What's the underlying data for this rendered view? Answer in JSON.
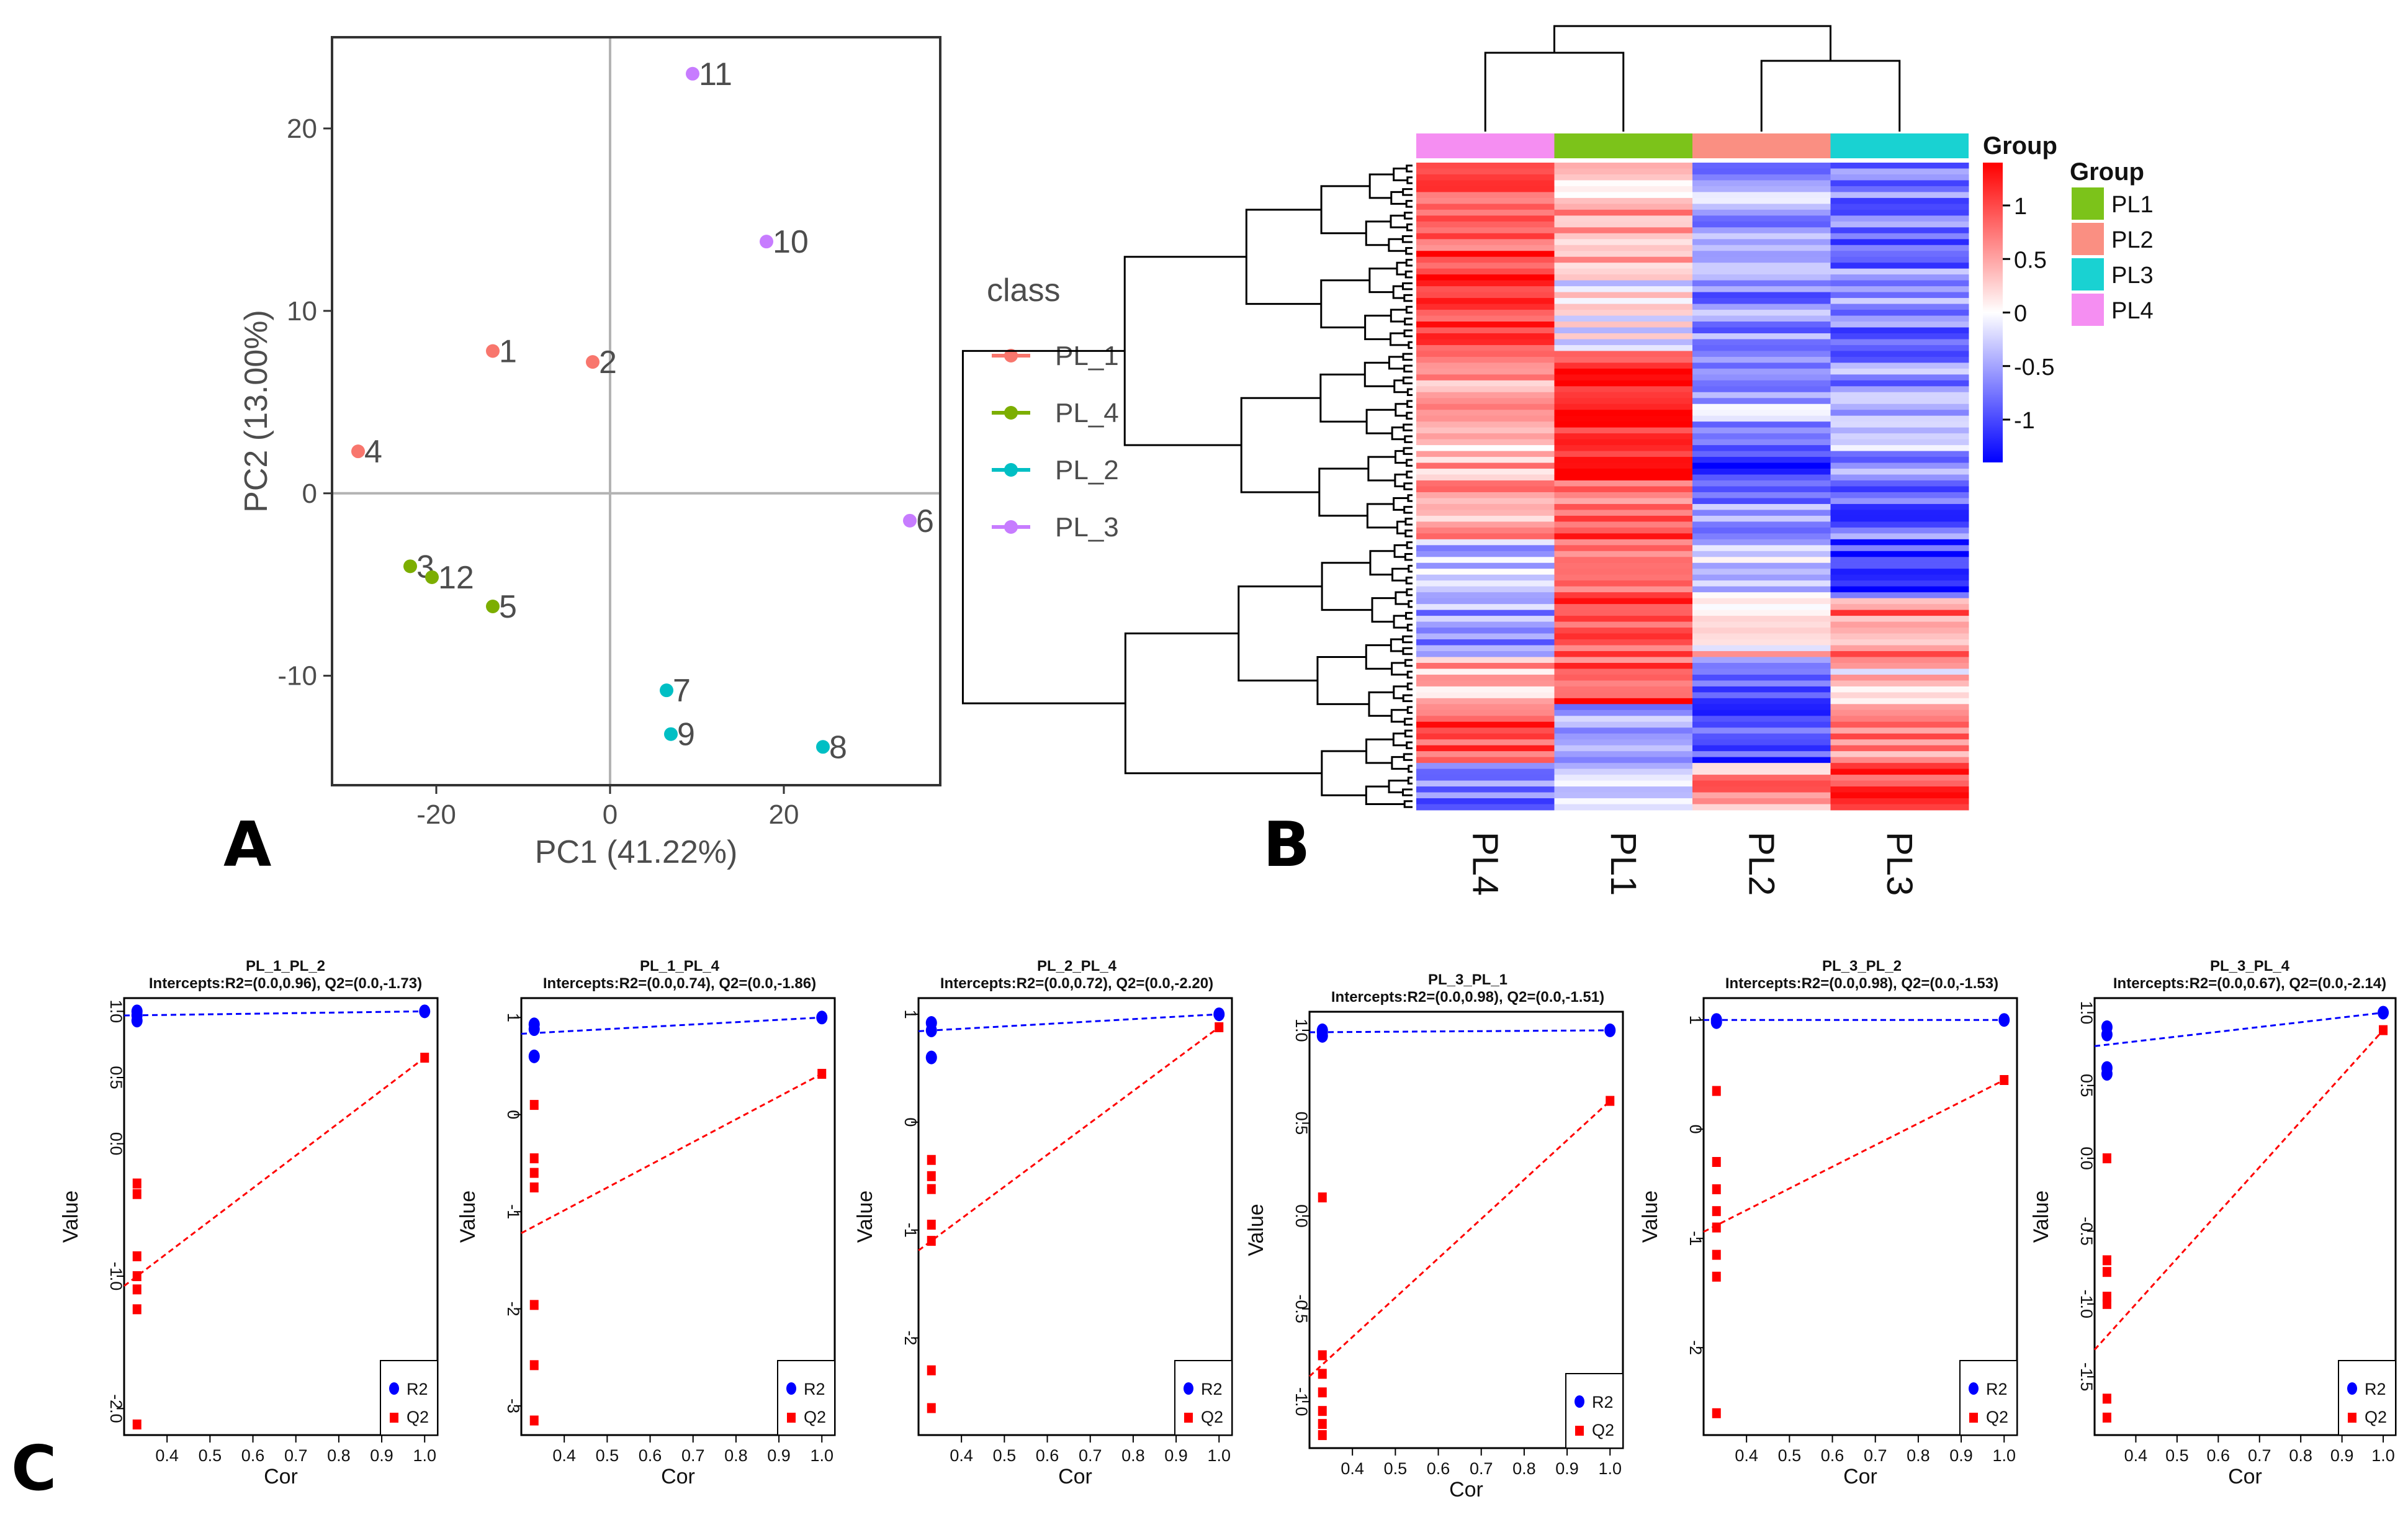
{
  "panels": {
    "a": "A",
    "b": "B",
    "c": "C"
  },
  "chart_data": [
    {
      "type": "scatter",
      "id": "pca",
      "xlabel": "PC1 (41.22%)",
      "ylabel": "PC2 (13.00%)",
      "xlim": [
        -32,
        38
      ],
      "ylim": [
        -16,
        25
      ],
      "xticks": [
        -20,
        0,
        20
      ],
      "yticks": [
        -10,
        0,
        10,
        20
      ],
      "legend_title": "class",
      "legend_position": "right",
      "classes": [
        {
          "name": "PL_1",
          "color": "#f8766d"
        },
        {
          "name": "PL_4",
          "color": "#7cae00"
        },
        {
          "name": "PL_2",
          "color": "#00bfc4"
        },
        {
          "name": "PL_3",
          "color": "#c77cff"
        }
      ],
      "points": [
        {
          "label": "1",
          "x": -13.5,
          "y": 7.8,
          "class": "PL_1"
        },
        {
          "label": "2",
          "x": -2.0,
          "y": 7.2,
          "class": "PL_1"
        },
        {
          "label": "4",
          "x": -29.0,
          "y": 2.3,
          "class": "PL_1"
        },
        {
          "label": "3",
          "x": -23.0,
          "y": -4.0,
          "class": "PL_4"
        },
        {
          "label": "12",
          "x": -20.5,
          "y": -4.6,
          "class": "PL_4"
        },
        {
          "label": "5",
          "x": -13.5,
          "y": -6.2,
          "class": "PL_4"
        },
        {
          "label": "7",
          "x": 6.5,
          "y": -10.8,
          "class": "PL_2"
        },
        {
          "label": "9",
          "x": 7.0,
          "y": -13.2,
          "class": "PL_2"
        },
        {
          "label": "8",
          "x": 24.5,
          "y": -13.9,
          "class": "PL_2"
        },
        {
          "label": "11",
          "x": 9.5,
          "y": 23.0,
          "class": "PL_3"
        },
        {
          "label": "10",
          "x": 18.0,
          "y": 13.8,
          "class": "PL_3"
        },
        {
          "label": "6",
          "x": 34.5,
          "y": -1.5,
          "class": "PL_3"
        }
      ]
    },
    {
      "type": "heatmap",
      "id": "heatmap",
      "columns": [
        "PL4",
        "PL1",
        "PL2",
        "PL3"
      ],
      "column_groups": [
        "PL4",
        "PL1",
        "PL2",
        "PL3"
      ],
      "colorbar_title": "Group",
      "colorbar_ticks": [
        "1",
        "0.5",
        "0",
        "-0.5",
        "-1"
      ],
      "colorbar_tick_values": [
        1,
        0.5,
        0,
        -0.5,
        -1
      ],
      "value_range": [
        -1.4,
        1.4
      ],
      "legend_title": "Group",
      "legend": [
        {
          "name": "PL1",
          "color": "#7cc31a"
        },
        {
          "name": "PL2",
          "color": "#fa8f82"
        },
        {
          "name": "PL3",
          "color": "#19d2d2"
        },
        {
          "name": "PL4",
          "color": "#f58ef2"
        }
      ],
      "row_blocks": [
        {
          "rows": 18,
          "values": [
            1.0,
            0.4,
            -0.5,
            -0.8
          ]
        },
        {
          "rows": 14,
          "values": [
            1.2,
            0.0,
            -0.6,
            -0.7
          ]
        },
        {
          "rows": 12,
          "values": [
            0.6,
            1.2,
            -0.4,
            -0.6
          ]
        },
        {
          "rows": 10,
          "values": [
            0.4,
            1.3,
            -1.0,
            -0.5
          ]
        },
        {
          "rows": 10,
          "values": [
            0.5,
            0.9,
            -0.6,
            -0.8
          ]
        },
        {
          "rows": 10,
          "values": [
            -0.4,
            0.7,
            -0.2,
            -1.1
          ]
        },
        {
          "rows": 10,
          "values": [
            -0.5,
            1.0,
            0.2,
            0.7
          ]
        },
        {
          "rows": 8,
          "values": [
            0.5,
            1.0,
            -0.8,
            0.2
          ]
        },
        {
          "rows": 10,
          "values": [
            1.0,
            -0.5,
            -0.9,
            0.7
          ]
        },
        {
          "rows": 8,
          "values": [
            -0.8,
            -0.3,
            0.6,
            1.1
          ]
        }
      ],
      "dendrogram": "hierarchical clustering tree"
    },
    {
      "type": "line",
      "id": "perm1",
      "title": "PL_1_PL_2",
      "subtitle": "Intercepts:R2=(0.0,0.96), Q2=(0.0,-1.73)",
      "xlabel": "Cor",
      "ylabel": "Value",
      "xlim": [
        0.3,
        1.03
      ],
      "ylim": [
        -2.2,
        1.1
      ],
      "xticks": [
        "0.4",
        "0.5",
        "0.6",
        "0.7",
        "0.8",
        "0.9",
        "1.0"
      ],
      "yticks": [
        "1.0",
        "0.5",
        "0.0",
        "-1.0",
        "-2.0"
      ],
      "ytick_values": [
        1.0,
        0.5,
        0.0,
        -1.0,
        -2.0
      ],
      "legend": [
        "R2",
        "Q2"
      ],
      "r2_line": [
        [
          0.33,
          0.97
        ],
        [
          1.0,
          1.0
        ]
      ],
      "q2_line": [
        [
          0.33,
          -1.0
        ],
        [
          1.0,
          0.65
        ]
      ],
      "r2_points": [
        [
          0.33,
          0.93
        ],
        [
          0.33,
          0.97
        ],
        [
          0.33,
          1.0
        ],
        [
          1.0,
          1.0
        ]
      ],
      "q2_points": [
        [
          0.33,
          -0.3
        ],
        [
          0.33,
          -0.38
        ],
        [
          0.33,
          -0.85
        ],
        [
          0.33,
          -1.0
        ],
        [
          0.33,
          -1.1
        ],
        [
          0.33,
          -1.25
        ],
        [
          0.33,
          -2.12
        ],
        [
          1.0,
          0.65
        ]
      ]
    },
    {
      "type": "line",
      "id": "perm2",
      "title": "PL_1_PL_4",
      "subtitle": "Intercepts:R2=(0.0,0.74), Q2=(0.0,-1.86)",
      "xlabel": "Cor",
      "ylabel": "Value",
      "xlim": [
        0.3,
        1.03
      ],
      "ylim": [
        -3.3,
        1.2
      ],
      "xticks": [
        "0.4",
        "0.5",
        "0.6",
        "0.7",
        "0.8",
        "0.9",
        "1.0"
      ],
      "yticks": [
        "1",
        "0",
        "-1",
        "-2",
        "-3"
      ],
      "ytick_values": [
        1,
        0,
        -1,
        -2,
        -3
      ],
      "legend": [
        "R2",
        "Q2"
      ],
      "r2_line": [
        [
          0.33,
          0.84
        ],
        [
          1.0,
          1.0
        ]
      ],
      "q2_line": [
        [
          0.33,
          -1.15
        ],
        [
          1.0,
          0.42
        ]
      ],
      "r2_points": [
        [
          0.33,
          0.6
        ],
        [
          0.33,
          0.88
        ],
        [
          0.33,
          0.93
        ],
        [
          1.0,
          1.0
        ]
      ],
      "q2_points": [
        [
          0.33,
          0.1
        ],
        [
          0.33,
          -0.45
        ],
        [
          0.33,
          -0.6
        ],
        [
          0.33,
          -0.75
        ],
        [
          0.33,
          -1.96
        ],
        [
          0.33,
          -2.58
        ],
        [
          0.33,
          -3.15
        ],
        [
          1.0,
          0.42
        ]
      ]
    },
    {
      "type": "line",
      "id": "perm3",
      "title": "PL_2_PL_4",
      "subtitle": "Intercepts:R2=(0.0,0.72), Q2=(0.0,-2.20)",
      "xlabel": "Cor",
      "ylabel": "Value",
      "xlim": [
        0.3,
        1.03
      ],
      "ylim": [
        -2.9,
        1.15
      ],
      "xticks": [
        "0.4",
        "0.5",
        "0.6",
        "0.7",
        "0.8",
        "0.9",
        "1.0"
      ],
      "yticks": [
        "1",
        "0",
        "-1",
        "-2"
      ],
      "ytick_values": [
        1,
        0,
        -1,
        -2
      ],
      "legend": [
        "R2",
        "Q2"
      ],
      "r2_line": [
        [
          0.33,
          0.85
        ],
        [
          1.0,
          1.0
        ]
      ],
      "q2_line": [
        [
          0.33,
          -1.1
        ],
        [
          1.0,
          0.88
        ]
      ],
      "r2_points": [
        [
          0.33,
          0.6
        ],
        [
          0.33,
          0.85
        ],
        [
          0.33,
          0.92
        ],
        [
          1.0,
          1.0
        ]
      ],
      "q2_points": [
        [
          0.33,
          -0.35
        ],
        [
          0.33,
          -0.5
        ],
        [
          0.33,
          -0.62
        ],
        [
          0.33,
          -0.95
        ],
        [
          0.33,
          -1.1
        ],
        [
          0.33,
          -2.3
        ],
        [
          0.33,
          -2.65
        ],
        [
          1.0,
          0.88
        ]
      ]
    },
    {
      "type": "line",
      "id": "perm4",
      "title": "PL_3_PL_1",
      "subtitle": "Intercepts:R2=(0.0,0.98), Q2=(0.0,-1.51)",
      "xlabel": "Cor",
      "ylabel": "Value",
      "xlim": [
        0.3,
        1.03
      ],
      "ylim": [
        -1.25,
        1.1
      ],
      "xticks": [
        "0.4",
        "0.5",
        "0.6",
        "0.7",
        "0.8",
        "0.9",
        "1.0"
      ],
      "yticks": [
        "1.0",
        "0.5",
        "0.0",
        "-0.5",
        "-1.0"
      ],
      "ytick_values": [
        1.0,
        0.5,
        0.0,
        -0.5,
        -1.0
      ],
      "legend": [
        "R2",
        "Q2"
      ],
      "r2_line": [
        [
          0.33,
          0.99
        ],
        [
          1.0,
          1.0
        ]
      ],
      "q2_line": [
        [
          0.33,
          -0.8
        ],
        [
          1.0,
          0.62
        ]
      ],
      "r2_points": [
        [
          0.33,
          0.97
        ],
        [
          0.33,
          0.99
        ],
        [
          0.33,
          1.0
        ],
        [
          1.0,
          1.0
        ]
      ],
      "q2_points": [
        [
          0.33,
          0.1
        ],
        [
          0.33,
          -0.75
        ],
        [
          0.33,
          -0.85
        ],
        [
          0.33,
          -0.95
        ],
        [
          0.33,
          -1.05
        ],
        [
          0.33,
          -1.12
        ],
        [
          0.33,
          -1.18
        ],
        [
          1.0,
          0.62
        ]
      ]
    },
    {
      "type": "line",
      "id": "perm5",
      "title": "PL_3_PL_2",
      "subtitle": "Intercepts:R2=(0.0,0.98), Q2=(0.0,-1.53)",
      "xlabel": "Cor",
      "ylabel": "Value",
      "xlim": [
        0.3,
        1.03
      ],
      "ylim": [
        -2.8,
        1.2
      ],
      "xticks": [
        "0.4",
        "0.5",
        "0.6",
        "0.7",
        "0.8",
        "0.9",
        "1.0"
      ],
      "yticks": [
        "1",
        "0",
        "-1",
        "-2"
      ],
      "ytick_values": [
        1,
        0,
        -1,
        -2
      ],
      "legend": [
        "R2",
        "Q2"
      ],
      "r2_line": [
        [
          0.33,
          1.0
        ],
        [
          1.0,
          1.0
        ]
      ],
      "q2_line": [
        [
          0.33,
          -0.88
        ],
        [
          1.0,
          0.45
        ]
      ],
      "r2_points": [
        [
          0.33,
          0.98
        ],
        [
          0.33,
          1.0
        ],
        [
          1.0,
          1.0
        ]
      ],
      "q2_points": [
        [
          0.33,
          0.35
        ],
        [
          0.33,
          -0.3
        ],
        [
          0.33,
          -0.55
        ],
        [
          0.33,
          -0.75
        ],
        [
          0.33,
          -0.9
        ],
        [
          0.33,
          -1.15
        ],
        [
          0.33,
          -1.35
        ],
        [
          0.33,
          -2.6
        ],
        [
          1.0,
          0.45
        ]
      ]
    },
    {
      "type": "line",
      "id": "perm6",
      "title": "PL_3_PL_4",
      "subtitle": "Intercepts:R2=(0.0,0.67), Q2=(0.0,-2.14)",
      "xlabel": "Cor",
      "ylabel": "Value",
      "xlim": [
        0.3,
        1.03
      ],
      "ylim": [
        -1.9,
        1.1
      ],
      "xticks": [
        "0.4",
        "0.5",
        "0.6",
        "0.7",
        "0.8",
        "0.9",
        "1.0"
      ],
      "yticks": [
        "1.0",
        "0.5",
        "0.0",
        "-0.5",
        "-1.0",
        "-1.5"
      ],
      "ytick_values": [
        1.0,
        0.5,
        0.0,
        -0.5,
        -1.0,
        -1.5
      ],
      "legend": [
        "R2",
        "Q2"
      ],
      "r2_line": [
        [
          0.33,
          0.78
        ],
        [
          1.0,
          1.0
        ]
      ],
      "q2_line": [
        [
          0.33,
          -1.22
        ],
        [
          1.0,
          0.88
        ]
      ],
      "r2_points": [
        [
          0.33,
          0.58
        ],
        [
          0.33,
          0.62
        ],
        [
          0.33,
          0.85
        ],
        [
          0.33,
          0.9
        ],
        [
          1.0,
          1.0
        ]
      ],
      "q2_points": [
        [
          0.33,
          0.0
        ],
        [
          0.33,
          -0.7
        ],
        [
          0.33,
          -0.78
        ],
        [
          0.33,
          -0.95
        ],
        [
          0.33,
          -1.0
        ],
        [
          0.33,
          -1.65
        ],
        [
          0.33,
          -1.78
        ],
        [
          1.0,
          0.88
        ]
      ]
    }
  ]
}
